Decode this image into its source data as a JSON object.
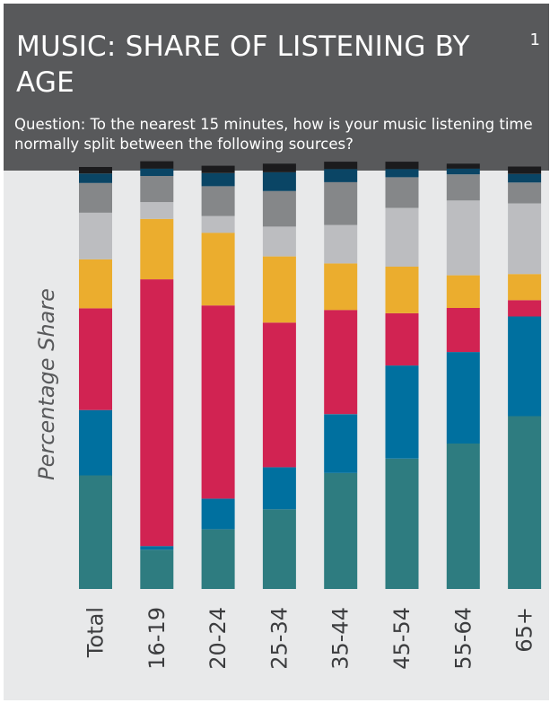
{
  "header": {
    "title": "MUSIC: SHARE OF LISTENING BY AGE",
    "page_number": "1",
    "question": "Question: To the nearest 15 minutes, how is your music listening time normally split between the following sources?"
  },
  "chart_data": {
    "type": "bar",
    "stacked": true,
    "ylabel": "Percentage Share",
    "xlabel": "",
    "ylim": [
      0,
      100
    ],
    "categories": [
      "Total",
      "16-19",
      "20-24",
      "25-34",
      "35-44",
      "45-54",
      "55-64",
      "65+"
    ],
    "series": [
      {
        "color": "#2e7c80",
        "values": [
          27.8,
          9.6,
          14.6,
          19.5,
          28.4,
          31.9,
          35.6,
          42.3
        ]
      },
      {
        "color": "#00709f",
        "values": [
          16.0,
          0.9,
          7.5,
          10.3,
          14.4,
          22.8,
          22.4,
          24.4
        ]
      },
      {
        "color": "#d12352",
        "values": [
          24.9,
          65.3,
          47.3,
          35.4,
          25.5,
          12.8,
          10.8,
          4.0
        ]
      },
      {
        "color": "#ebad2e",
        "values": [
          12.0,
          14.8,
          17.8,
          16.2,
          11.4,
          11.4,
          8.0,
          6.4
        ]
      },
      {
        "color": "#bcbdc0",
        "values": [
          11.4,
          4.1,
          4.1,
          7.3,
          9.4,
          14.4,
          18.3,
          17.3
        ]
      },
      {
        "color": "#858789",
        "values": [
          7.3,
          6.4,
          7.3,
          8.7,
          10.5,
          7.5,
          6.4,
          5.1
        ]
      },
      {
        "color": "#0a4565",
        "values": [
          2.3,
          1.8,
          3.2,
          4.6,
          3.2,
          2.0,
          1.4,
          2.1
        ]
      },
      {
        "color": "#1b1b1d",
        "values": [
          1.6,
          1.8,
          1.8,
          2.1,
          1.8,
          1.8,
          1.2,
          1.8
        ]
      }
    ]
  }
}
